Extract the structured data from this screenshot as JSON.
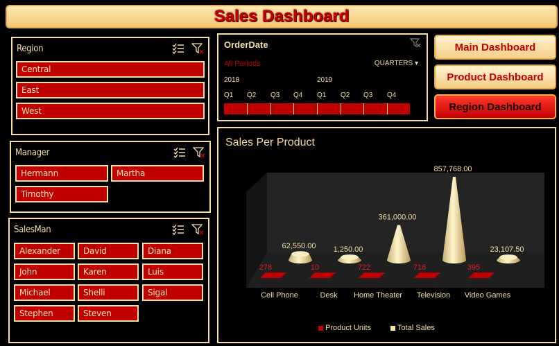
{
  "header": {
    "title": "Sales Dashboard"
  },
  "slicers": {
    "region": {
      "title": "Region",
      "items": [
        "Central",
        "East",
        "West"
      ]
    },
    "manager": {
      "title": "Manager",
      "items": [
        "Hermann",
        "Martha",
        "Timothy"
      ]
    },
    "salesman": {
      "title": "SalesMan",
      "items": [
        "Alexander",
        "David",
        "Diana",
        "John",
        "Karen",
        "Luis",
        "Michael",
        "Shelli",
        "Sigal",
        "Stephen",
        "Steven"
      ]
    }
  },
  "timeline": {
    "title": "OrderDate",
    "selection": "All Periods",
    "level": "QUARTERS",
    "years": [
      "2018",
      "2019"
    ],
    "quarters": [
      "Q1",
      "Q2",
      "Q3",
      "Q4",
      "Q1",
      "Q2",
      "Q3",
      "Q4"
    ]
  },
  "nav": {
    "main": "Main Dashboard",
    "product": "Product Dashboard",
    "region": "Region Dashboard"
  },
  "colors": {
    "accent": "#c00000",
    "cream": "#f4dfa8",
    "gold": "#e2a94a"
  },
  "chart_data": {
    "type": "bar",
    "title": "Sales Per Product",
    "categories": [
      "Cell Phone",
      "Desk",
      "Home Theater",
      "Television",
      "Video Games"
    ],
    "series": [
      {
        "name": "Product Units",
        "values": [
          278,
          10,
          722,
          716,
          395
        ],
        "labels": [
          "278",
          "10",
          "722",
          "716",
          "395"
        ],
        "color": "#c00000"
      },
      {
        "name": "Total Sales",
        "values": [
          62550,
          1250,
          361000,
          857768,
          23107.5
        ],
        "labels": [
          "62,550.00",
          "1,250.00",
          "361,000.00",
          "857,768.00",
          "23,107.50"
        ],
        "color": "#f6e6a6"
      }
    ],
    "legend": "bottom",
    "grid": false
  }
}
